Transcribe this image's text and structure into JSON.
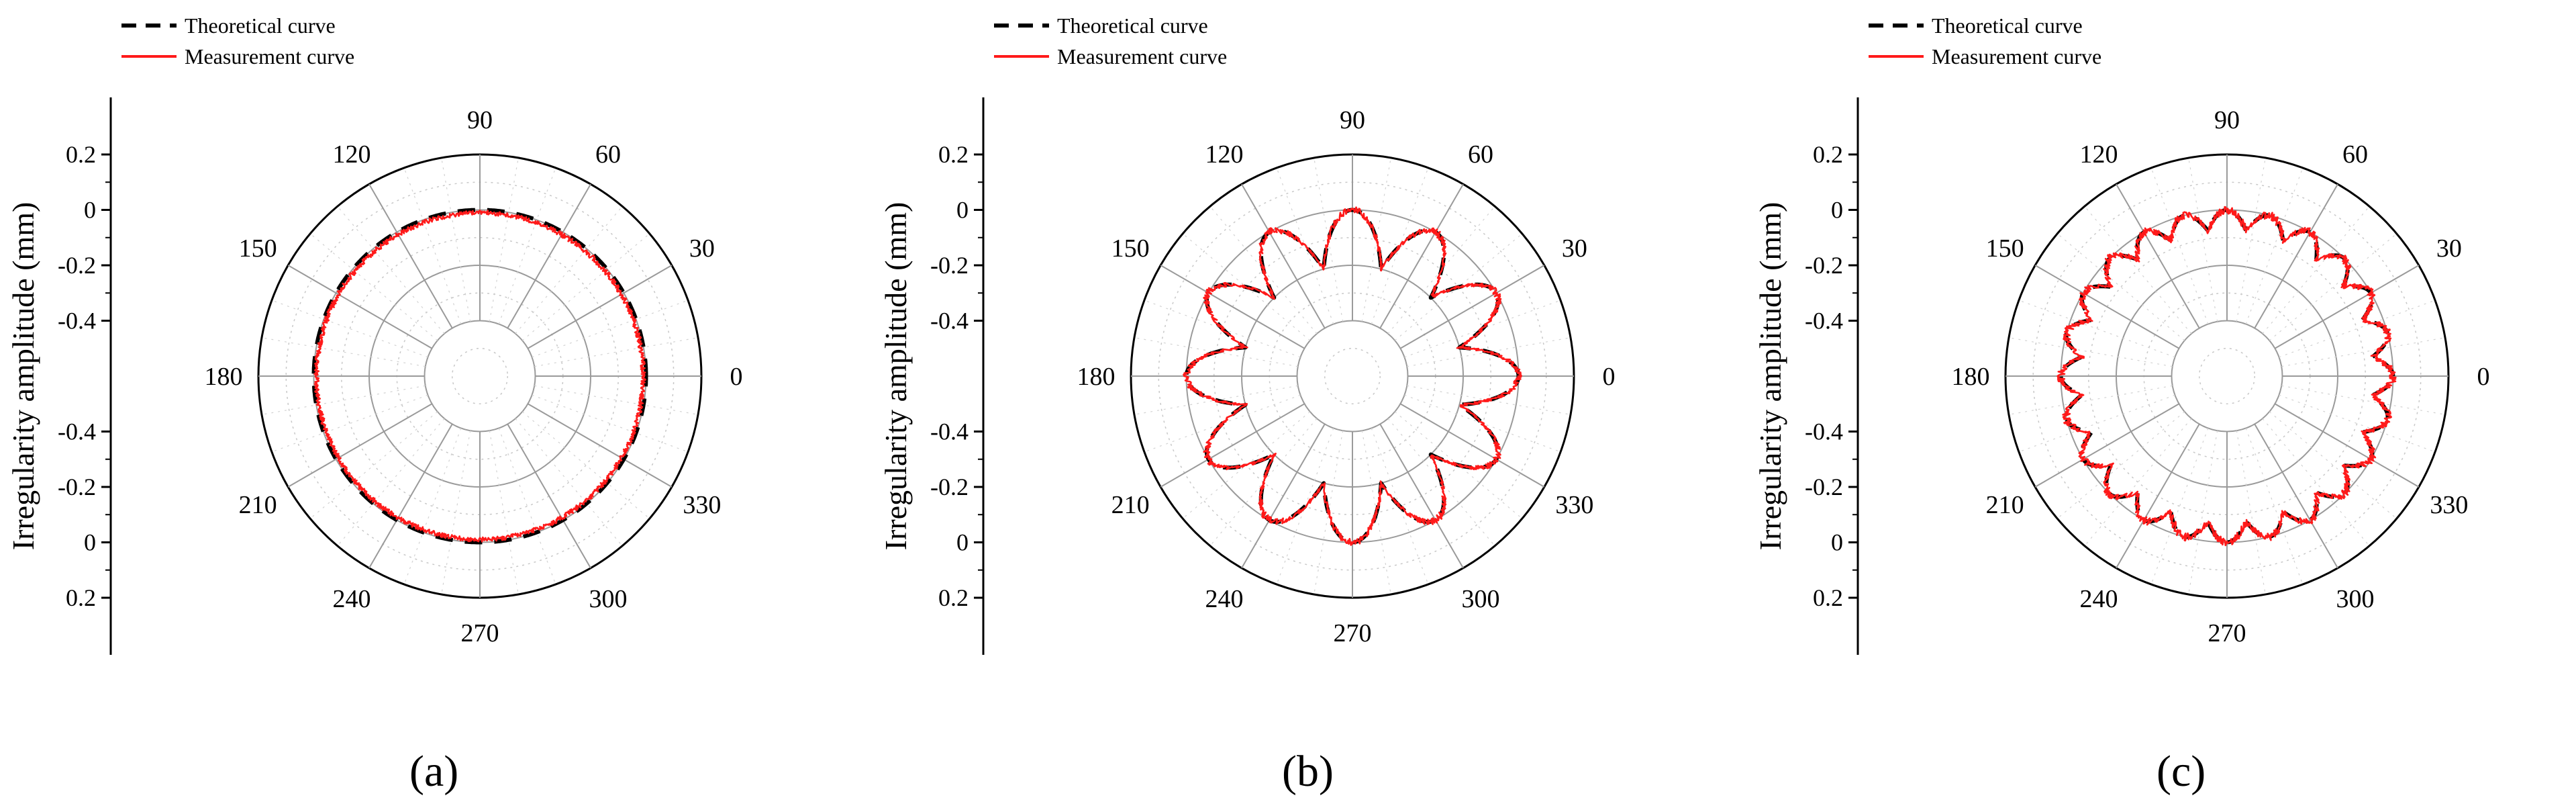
{
  "figure": {
    "panel_labels": [
      "(a)",
      "(b)",
      "(c)"
    ]
  },
  "colors": {
    "theoretical": "#000000",
    "measurement": "#ff1a1a",
    "grid": "#9a9a9a",
    "axis": "#000000"
  },
  "chart_data": [
    {
      "type": "polar-line",
      "panel": "(a)",
      "ylabel": "Irregularity amplitude (mm)",
      "r_tick_labels": [
        "0.2",
        "0",
        "-0.2",
        "-0.4"
      ],
      "r_range": [
        -0.6,
        0.2
      ],
      "angle_labels": [
        "0",
        "30",
        "60",
        "90",
        "120",
        "150",
        "180",
        "210",
        "240",
        "270",
        "300",
        "330"
      ],
      "grid": true,
      "legend_position": "top-left",
      "series": [
        {
          "name": "Theoretical curve",
          "style": "dashed",
          "color": "#000000",
          "lobes": 0,
          "amplitude": 0.0,
          "base": 0.0
        },
        {
          "name": "Measurement curve",
          "style": "solid",
          "color": "#ff1a1a",
          "lobes": 0,
          "amplitude": 0.0,
          "base": -0.01,
          "noise": 0.008
        }
      ]
    },
    {
      "type": "polar-line",
      "panel": "(b)",
      "ylabel": "Irregularity amplitude (mm)",
      "r_tick_labels": [
        "0.2",
        "0",
        "-0.2",
        "-0.4"
      ],
      "r_range": [
        -0.6,
        0.2
      ],
      "angle_labels": [
        "0",
        "30",
        "60",
        "90",
        "120",
        "150",
        "180",
        "210",
        "240",
        "270",
        "300",
        "330"
      ],
      "grid": true,
      "legend_position": "top-left",
      "series": [
        {
          "name": "Theoretical curve",
          "style": "dashed",
          "color": "#000000",
          "lobes": 12,
          "amplitude": 0.2,
          "base": -0.2
        },
        {
          "name": "Measurement curve",
          "style": "solid",
          "color": "#ff1a1a",
          "lobes": 12,
          "amplitude": 0.2,
          "base": -0.2,
          "noise": 0.012
        }
      ]
    },
    {
      "type": "polar-line",
      "panel": "(c)",
      "ylabel": "Irregularity amplitude (mm)",
      "r_tick_labels": [
        "0.2",
        "0",
        "-0.2",
        "-0.4"
      ],
      "r_range": [
        -0.6,
        0.2
      ],
      "angle_labels": [
        "0",
        "30",
        "60",
        "90",
        "120",
        "150",
        "180",
        "210",
        "240",
        "270",
        "300",
        "330"
      ],
      "grid": true,
      "legend_position": "top-left",
      "series": [
        {
          "name": "Theoretical curve",
          "style": "dashed",
          "color": "#000000",
          "lobes": 24,
          "amplitude": 0.07,
          "base": -0.07
        },
        {
          "name": "Measurement curve",
          "style": "solid",
          "color": "#ff1a1a",
          "lobes": 24,
          "amplitude": 0.07,
          "base": -0.07,
          "noise": 0.014
        }
      ]
    }
  ]
}
